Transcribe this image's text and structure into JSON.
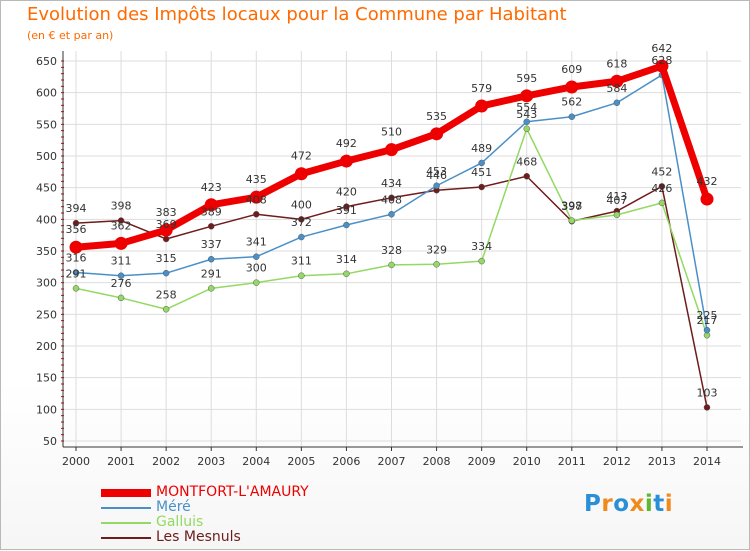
{
  "header": {
    "title": "Evolution des Impôts locaux pour la Commune par Habitant",
    "subtitle": "(en € et par an)"
  },
  "colors": {
    "title": "#ff6a00",
    "axis": "#333333",
    "grid": "#dddddd",
    "tick_red": "#dd0000"
  },
  "brand": {
    "text": "Proxiti",
    "letters": [
      "P",
      "r",
      "o",
      "x",
      "i",
      "t",
      "i"
    ],
    "letter_colors": [
      "#2a8fd6",
      "#f08a1c",
      "#2a8fd6",
      "#f08a1c",
      "#5cb82e",
      "#2a8fd6",
      "#f08a1c"
    ]
  },
  "chart_data": {
    "type": "line",
    "title": "Evolution des Impôts locaux pour la Commune par Habitant",
    "subtitle": "(en € et par an)",
    "xlabel": "",
    "ylabel": "",
    "categories": [
      "2000",
      "2001",
      "2002",
      "2003",
      "2004",
      "2005",
      "2006",
      "2007",
      "2008",
      "2009",
      "2010",
      "2011",
      "2012",
      "2013",
      "2014"
    ],
    "ylim": [
      50,
      650
    ],
    "yticks": [
      50,
      100,
      150,
      200,
      250,
      300,
      350,
      400,
      450,
      500,
      550,
      600,
      650
    ],
    "grid": true,
    "legend_position": "bottom-left",
    "series": [
      {
        "name": "MONTFORT-L'AMAURY",
        "color": "#ee0000",
        "emphasis": true,
        "values": [
          356,
          362,
          383,
          423,
          435,
          472,
          492,
          510,
          535,
          579,
          595,
          609,
          618,
          642,
          432
        ]
      },
      {
        "name": "Méré",
        "color": "#4a90c8",
        "emphasis": false,
        "values": [
          316,
          311,
          315,
          337,
          341,
          372,
          391,
          408,
          453,
          489,
          554,
          562,
          584,
          628,
          225
        ]
      },
      {
        "name": "Galluis",
        "color": "#93d963",
        "emphasis": false,
        "values": [
          291,
          276,
          258,
          291,
          300,
          311,
          314,
          328,
          329,
          334,
          543,
          398,
          407,
          426,
          217
        ]
      },
      {
        "name": "Les Mesnuls",
        "color": "#6e1c1c",
        "emphasis": false,
        "values": [
          394,
          398,
          369,
          389,
          408,
          400,
          420,
          434,
          446,
          451,
          468,
          397,
          413,
          452,
          103
        ]
      }
    ],
    "data_labels": [
      [
        "356",
        "362",
        "383",
        "423",
        "435",
        "472",
        "492",
        "510",
        "535",
        "579",
        "595",
        "609",
        "618",
        "642",
        "432"
      ],
      [
        "316",
        "311",
        "315",
        "337",
        "341",
        "372",
        "391",
        "408",
        "453",
        "489",
        "554",
        "562",
        "584",
        "628",
        "225"
      ],
      [
        "291",
        "276",
        "258",
        "291",
        "300",
        "311",
        "314",
        "328",
        "329",
        "334",
        "543",
        "398",
        "407",
        "426",
        "217"
      ],
      [
        "394",
        "398",
        "369",
        "389",
        "408",
        "400",
        "420",
        "434",
        "446",
        "451",
        "468",
        "397",
        "413",
        "452",
        "103"
      ]
    ]
  }
}
